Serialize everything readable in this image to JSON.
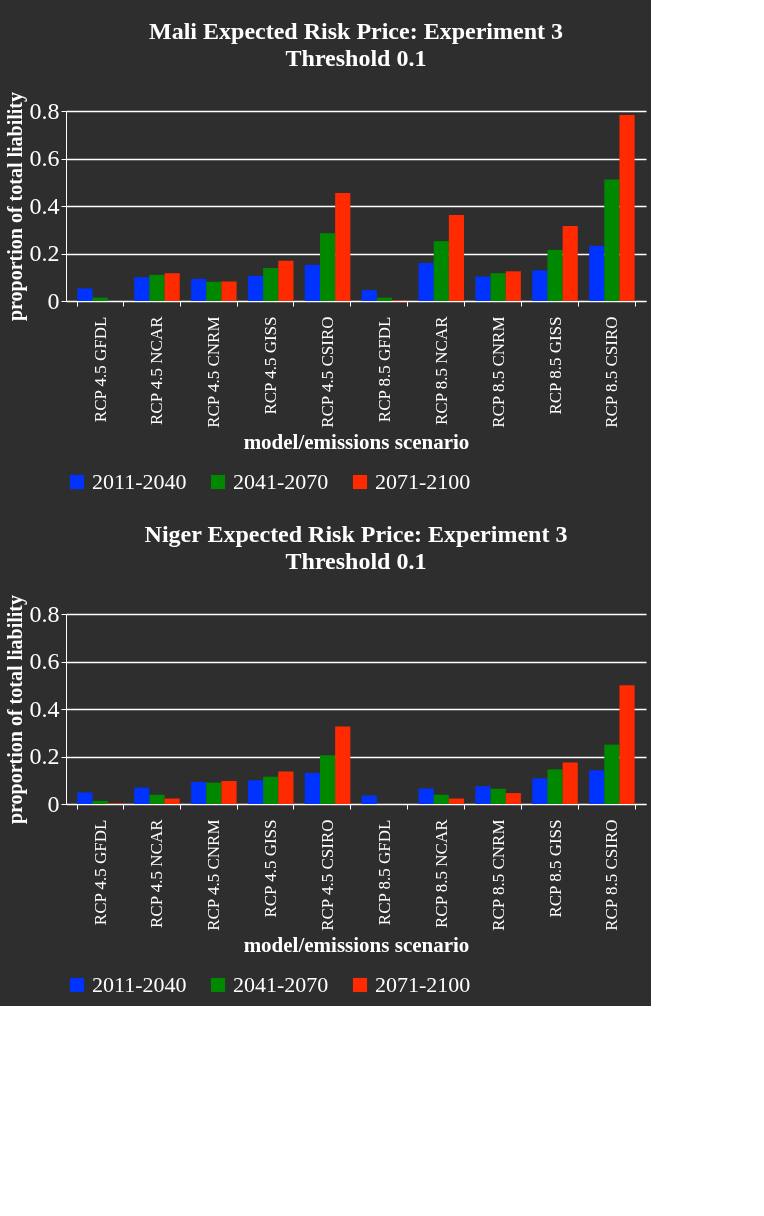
{
  "chart_data": [
    {
      "type": "bar",
      "title": "Mali Expected Risk Price: Experiment 3",
      "subtitle": "Threshold 0.1",
      "xlabel": "model/emissions scenario",
      "ylabel": "proportion of total liability",
      "categories": [
        "RCP 4.5 GFDL",
        "RCP 4.5 NCAR",
        "RCP 4.5 CNRM",
        "RCP 4.5 GISS",
        "RCP 4.5 CSIRO",
        "RCP 8.5 GFDL",
        "RCP 8.5 NCAR",
        "RCP 8.5 CNRM",
        "RCP 8.5 GISS",
        "RCP 8.5 CSIRO"
      ],
      "series": [
        {
          "name": "2011-2040",
          "color": "#0033ff",
          "values": [
            0.053,
            0.1,
            0.093,
            0.106,
            0.153,
            0.046,
            0.16,
            0.103,
            0.129,
            0.232
          ]
        },
        {
          "name": "2041-2070",
          "color": "#008800",
          "values": [
            0.014,
            0.11,
            0.081,
            0.139,
            0.285,
            0.014,
            0.252,
            0.117,
            0.215,
            0.512
          ]
        },
        {
          "name": "2071-2100",
          "color": "#ff2a00",
          "values": [
            null,
            0.117,
            0.082,
            0.17,
            0.455,
            0.003,
            0.362,
            0.125,
            0.316,
            0.783
          ]
        }
      ],
      "ylim": [
        0,
        0.8
      ],
      "yticks": [
        0,
        0.2,
        0.4,
        0.6,
        0.8
      ],
      "grid": "y",
      "legend": "bottom"
    },
    {
      "type": "bar",
      "title": "Niger Expected Risk Price: Experiment 3",
      "subtitle": "Threshold 0.1",
      "xlabel": "model/emissions scenario",
      "ylabel": "proportion of total liability",
      "categories": [
        "RCP 4.5 GFDL",
        "RCP 4.5 NCAR",
        "RCP 4.5 CNRM",
        "RCP 4.5 GISS",
        "RCP 4.5 CSIRO",
        "RCP 8.5 GFDL",
        "RCP 8.5 NCAR",
        "RCP 8.5 CNRM",
        "RCP 8.5 GISS",
        "RCP 8.5 CSIRO"
      ],
      "series": [
        {
          "name": "2011-2040",
          "color": "#0033ff",
          "values": [
            0.049,
            0.069,
            0.093,
            0.1,
            0.131,
            0.036,
            0.065,
            0.075,
            0.108,
            0.142
          ]
        },
        {
          "name": "2041-2070",
          "color": "#008800",
          "values": [
            0.013,
            0.039,
            0.09,
            0.115,
            0.205,
            null,
            0.039,
            0.064,
            0.146,
            0.25
          ]
        },
        {
          "name": "2071-2100",
          "color": "#ff2a00",
          "values": [
            0.003,
            0.023,
            0.097,
            0.137,
            0.326,
            null,
            0.023,
            0.046,
            0.175,
            0.5
          ]
        }
      ],
      "ylim": [
        0,
        0.8
      ],
      "yticks": [
        0,
        0.2,
        0.4,
        0.6,
        0.8
      ],
      "grid": "y",
      "legend": "bottom"
    }
  ]
}
